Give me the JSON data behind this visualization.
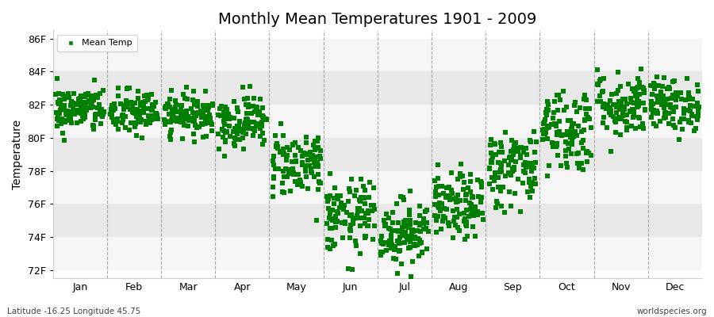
{
  "title": "Monthly Mean Temperatures 1901 - 2009",
  "ylabel": "Temperature",
  "marker_color": "#008000",
  "legend_label": "Mean Temp",
  "footnote_left": "Latitude -16.25 Longitude 45.75",
  "footnote_right": "worldspecies.org",
  "ylim": [
    71.5,
    86.5
  ],
  "yticks": [
    72,
    74,
    76,
    78,
    80,
    82,
    84,
    86
  ],
  "ytick_labels": [
    "72F",
    "74F",
    "76F",
    "78F",
    "80F",
    "82F",
    "84F",
    "86F"
  ],
  "months": [
    "Jan",
    "Feb",
    "Mar",
    "Apr",
    "May",
    "Jun",
    "Jul",
    "Aug",
    "Sep",
    "Oct",
    "Nov",
    "Dec"
  ],
  "band_colors": [
    "#f5f5f5",
    "#e8e8e8"
  ],
  "dashed_line_color": "#888888",
  "month_means": [
    81.7,
    81.5,
    81.4,
    81.0,
    78.5,
    75.2,
    74.3,
    75.8,
    78.2,
    80.5,
    82.0,
    82.0
  ],
  "month_stds": [
    0.7,
    0.7,
    0.6,
    0.8,
    1.0,
    1.1,
    1.0,
    1.0,
    1.2,
    1.3,
    1.0,
    0.8
  ],
  "n_years": 109,
  "seed": 42,
  "marker_size": 4,
  "title_fontsize": 14,
  "axis_fontsize": 9,
  "ylabel_fontsize": 10,
  "footnote_fontsize": 7.5
}
